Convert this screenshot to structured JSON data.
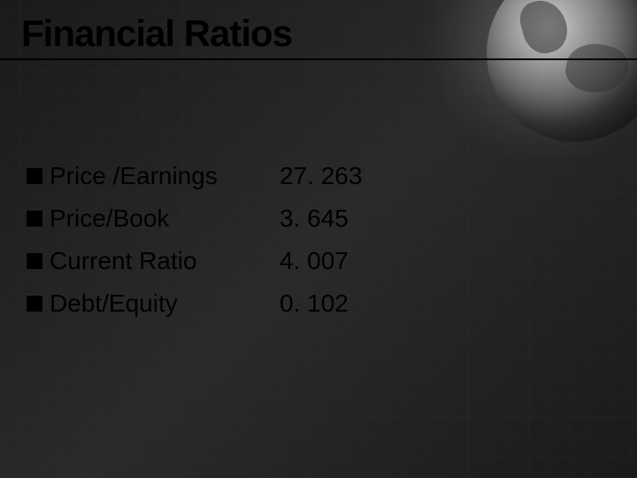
{
  "title": "Financial Ratios",
  "rows": [
    {
      "label": "Price /Earnings",
      "value": "27. 263"
    },
    {
      "label": "Price/Book",
      "value": "3. 645"
    },
    {
      "label": "Current Ratio",
      "value": "4. 007"
    },
    {
      "label": "Debt/Equity",
      "value": "0. 102"
    }
  ],
  "style": {
    "background": "#1a1a1a",
    "text_color": "#000000",
    "title_fontsize": 42,
    "body_fontsize": 28,
    "bullet_color": "#000000",
    "rule_color": "#000000",
    "grid_color": "rgba(60,60,60,0.15)"
  }
}
